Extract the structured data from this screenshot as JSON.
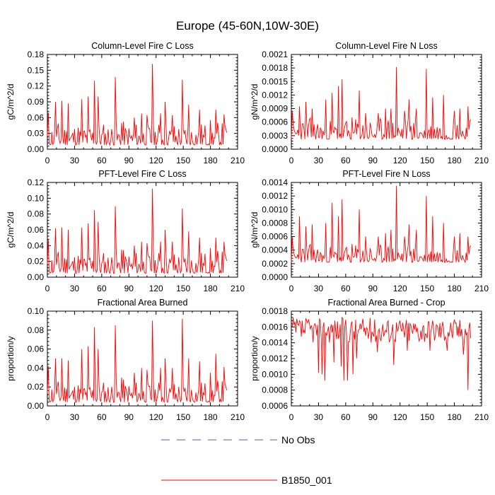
{
  "figure": {
    "title": "Europe (45-60N,10W-30E)"
  },
  "legend": {
    "placement": "bottom-center",
    "items": [
      {
        "label": "No Obs",
        "color": "#5a5aa0",
        "style": "dashed"
      },
      {
        "label": "B1850_001",
        "color": "#ff0000",
        "style": "solid"
      }
    ]
  },
  "chart_data": [
    {
      "id": "col-fire-c",
      "type": "line",
      "title": "Column-Level Fire C Loss",
      "xlabel": "",
      "ylabel": "gC/m^2/d",
      "xlim": [
        0,
        210
      ],
      "ylim": [
        0,
        0.18
      ],
      "xticks": [
        0,
        30,
        60,
        90,
        120,
        150,
        180,
        210
      ],
      "yticks": [
        0.0,
        0.03,
        0.06,
        0.09,
        0.12,
        0.15,
        0.18
      ],
      "ytick_labels": [
        "0.00",
        "0.03",
        "0.06",
        "0.09",
        "0.12",
        "0.15",
        "0.18"
      ],
      "series": [
        {
          "name": "B1850_001",
          "color": "#ff0000",
          "base": 0.008,
          "amp": 0.045,
          "seed": 11,
          "peaks": [
            [
              1,
              0.07
            ],
            [
              9,
              0.09
            ],
            [
              16,
              0.092
            ],
            [
              23,
              0.087
            ],
            [
              38,
              0.095
            ],
            [
              45,
              0.1
            ],
            [
              52,
              0.13
            ],
            [
              56,
              0.1
            ],
            [
              75,
              0.137
            ],
            [
              82,
              0.05
            ],
            [
              96,
              0.06
            ],
            [
              104,
              0.068
            ],
            [
              110,
              0.065
            ],
            [
              116,
              0.162
            ],
            [
              125,
              0.068
            ],
            [
              130,
              0.09
            ],
            [
              138,
              0.065
            ],
            [
              149,
              0.132
            ],
            [
              156,
              0.085
            ],
            [
              168,
              0.075
            ],
            [
              180,
              0.055
            ],
            [
              186,
              0.075
            ],
            [
              195,
              0.066
            ]
          ],
          "end": 198
        }
      ]
    },
    {
      "id": "col-fire-n",
      "type": "line",
      "title": "Column-Level Fire N Loss",
      "xlabel": "",
      "ylabel": "gN/m^2/d",
      "xlim": [
        0,
        210
      ],
      "ylim": [
        0,
        0.0021
      ],
      "xticks": [
        0,
        30,
        60,
        90,
        120,
        150,
        180,
        210
      ],
      "yticks": [
        0.0,
        0.0003,
        0.0006,
        0.0009,
        0.0012,
        0.0015,
        0.0018,
        0.0021
      ],
      "ytick_labels": [
        "0.0000",
        "0.0003",
        "0.0006",
        "0.0009",
        "0.0012",
        "0.0015",
        "0.0018",
        "0.0021"
      ],
      "series": [
        {
          "name": "B1850_001",
          "color": "#ff0000",
          "base": 0.00022,
          "amp": 0.0005,
          "seed": 23,
          "peaks": [
            [
              1,
              0.00085
            ],
            [
              9,
              0.00095
            ],
            [
              16,
              0.00105
            ],
            [
              23,
              0.0009
            ],
            [
              38,
              0.0011
            ],
            [
              45,
              0.00125
            ],
            [
              52,
              0.0014
            ],
            [
              56,
              0.00155
            ],
            [
              75,
              0.0013
            ],
            [
              82,
              0.0008
            ],
            [
              96,
              0.0008
            ],
            [
              104,
              0.0009
            ],
            [
              110,
              0.0009
            ],
            [
              116,
              0.00182
            ],
            [
              125,
              0.00085
            ],
            [
              130,
              0.0011
            ],
            [
              138,
              0.0009
            ],
            [
              149,
              0.00178
            ],
            [
              156,
              0.00115
            ],
            [
              168,
              0.0012
            ],
            [
              180,
              0.00085
            ],
            [
              186,
              0.0009
            ],
            [
              195,
              0.00095
            ]
          ],
          "end": 198
        }
      ]
    },
    {
      "id": "pft-fire-c",
      "type": "line",
      "title": "PFT-Level Fire C Loss",
      "xlabel": "",
      "ylabel": "gC/m^2/d",
      "xlim": [
        0,
        210
      ],
      "ylim": [
        0,
        0.12
      ],
      "xticks": [
        0,
        30,
        60,
        90,
        120,
        150,
        180,
        210
      ],
      "yticks": [
        0.0,
        0.02,
        0.04,
        0.06,
        0.08,
        0.1,
        0.12
      ],
      "ytick_labels": [
        "0.00",
        "0.02",
        "0.04",
        "0.06",
        "0.08",
        "0.10",
        "0.12"
      ],
      "series": [
        {
          "name": "B1850_001",
          "color": "#ff0000",
          "base": 0.005,
          "amp": 0.03,
          "seed": 11,
          "peaks": [
            [
              1,
              0.048
            ],
            [
              9,
              0.062
            ],
            [
              16,
              0.063
            ],
            [
              23,
              0.06
            ],
            [
              38,
              0.063
            ],
            [
              45,
              0.068
            ],
            [
              52,
              0.085
            ],
            [
              56,
              0.07
            ],
            [
              75,
              0.09
            ],
            [
              82,
              0.035
            ],
            [
              96,
              0.04
            ],
            [
              104,
              0.045
            ],
            [
              110,
              0.043
            ],
            [
              116,
              0.112
            ],
            [
              125,
              0.045
            ],
            [
              130,
              0.06
            ],
            [
              138,
              0.045
            ],
            [
              149,
              0.087
            ],
            [
              156,
              0.058
            ],
            [
              168,
              0.05
            ],
            [
              180,
              0.037
            ],
            [
              186,
              0.05
            ],
            [
              195,
              0.045
            ]
          ],
          "end": 198
        }
      ]
    },
    {
      "id": "pft-fire-n",
      "type": "line",
      "title": "PFT-Level Fire N Loss",
      "xlabel": "",
      "ylabel": "gN/m^2/d",
      "xlim": [
        0,
        210
      ],
      "ylim": [
        0,
        0.0014
      ],
      "xticks": [
        0,
        30,
        60,
        90,
        120,
        150,
        180,
        210
      ],
      "yticks": [
        0.0,
        0.0002,
        0.0004,
        0.0006,
        0.0008,
        0.001,
        0.0012,
        0.0014
      ],
      "ytick_labels": [
        "0.0000",
        "0.0002",
        "0.0004",
        "0.0006",
        "0.0008",
        "0.0010",
        "0.0012",
        "0.0014"
      ],
      "series": [
        {
          "name": "B1850_001",
          "color": "#ff0000",
          "base": 0.00022,
          "amp": 0.00028,
          "seed": 23,
          "peaks": [
            [
              1,
              0.0006
            ],
            [
              9,
              0.0009
            ],
            [
              16,
              0.00075
            ],
            [
              23,
              0.00078
            ],
            [
              38,
              0.0008
            ],
            [
              45,
              0.0011
            ],
            [
              52,
              0.0009
            ],
            [
              56,
              0.00115
            ],
            [
              75,
              0.001
            ],
            [
              82,
              0.0006
            ],
            [
              96,
              0.0006
            ],
            [
              104,
              0.00065
            ],
            [
              110,
              0.0007
            ],
            [
              116,
              0.00135
            ],
            [
              125,
              0.0006
            ],
            [
              130,
              0.00078
            ],
            [
              138,
              0.0007
            ],
            [
              149,
              0.0012
            ],
            [
              156,
              0.0009
            ],
            [
              168,
              0.0008
            ],
            [
              180,
              0.0006
            ],
            [
              186,
              0.00065
            ],
            [
              195,
              0.0006
            ]
          ],
          "end": 198
        }
      ]
    },
    {
      "id": "area-burned",
      "type": "line",
      "title": "Fractional Area Burned",
      "xlabel": "",
      "ylabel": "proportion/y",
      "xlim": [
        0,
        210
      ],
      "ylim": [
        0,
        0.1
      ],
      "xticks": [
        0,
        30,
        60,
        90,
        120,
        150,
        180,
        210
      ],
      "yticks": [
        0.0,
        0.02,
        0.04,
        0.06,
        0.08,
        0.1
      ],
      "ytick_labels": [
        "0.00",
        "0.02",
        "0.04",
        "0.06",
        "0.08",
        "0.10"
      ],
      "series": [
        {
          "name": "B1850_001",
          "color": "#ff0000",
          "base": 0.004,
          "amp": 0.024,
          "seed": 11,
          "peaks": [
            [
              1,
              0.042
            ],
            [
              9,
              0.05
            ],
            [
              16,
              0.05
            ],
            [
              23,
              0.048
            ],
            [
              38,
              0.06
            ],
            [
              45,
              0.063
            ],
            [
              52,
              0.083
            ],
            [
              56,
              0.06
            ],
            [
              75,
              0.085
            ],
            [
              82,
              0.03
            ],
            [
              96,
              0.035
            ],
            [
              104,
              0.04
            ],
            [
              110,
              0.038
            ],
            [
              116,
              0.09
            ],
            [
              125,
              0.04
            ],
            [
              130,
              0.05
            ],
            [
              138,
              0.04
            ],
            [
              149,
              0.092
            ],
            [
              156,
              0.05
            ],
            [
              168,
              0.047
            ],
            [
              180,
              0.035
            ],
            [
              186,
              0.055
            ],
            [
              195,
              0.041
            ]
          ],
          "end": 198
        }
      ]
    },
    {
      "id": "area-burned-crop",
      "type": "line",
      "title": "Fractional Area Burned - Crop",
      "xlabel": "",
      "ylabel": "proportion/y",
      "xlim": [
        0,
        210
      ],
      "ylim": [
        0.0006,
        0.0018
      ],
      "xticks": [
        0,
        30,
        60,
        90,
        120,
        150,
        180,
        210
      ],
      "yticks": [
        0.0006,
        0.0008,
        0.001,
        0.0012,
        0.0014,
        0.0016,
        0.0018
      ],
      "ytick_labels": [
        "0.0006",
        "0.0008",
        "0.0010",
        "0.0012",
        "0.0014",
        "0.0016",
        "0.0018"
      ],
      "series": [
        {
          "name": "B1850_001",
          "color": "#ff0000",
          "crop": true,
          "seed": 37,
          "dips": [
            [
              30,
              0.00102
            ],
            [
              34,
              0.001
            ],
            [
              37,
              0.00092
            ],
            [
              47,
              0.00115
            ],
            [
              55,
              0.0011
            ],
            [
              58,
              0.00092
            ],
            [
              62,
              0.00092
            ],
            [
              68,
              0.001
            ],
            [
              72,
              0.0012
            ],
            [
              95,
              0.00128
            ],
            [
              113,
              0.00112
            ],
            [
              128,
              0.0013
            ],
            [
              153,
              0.0013
            ],
            [
              172,
              0.0013
            ],
            [
              190,
              0.00125
            ],
            [
              195,
              0.0008
            ]
          ],
          "end": 198
        }
      ]
    }
  ]
}
